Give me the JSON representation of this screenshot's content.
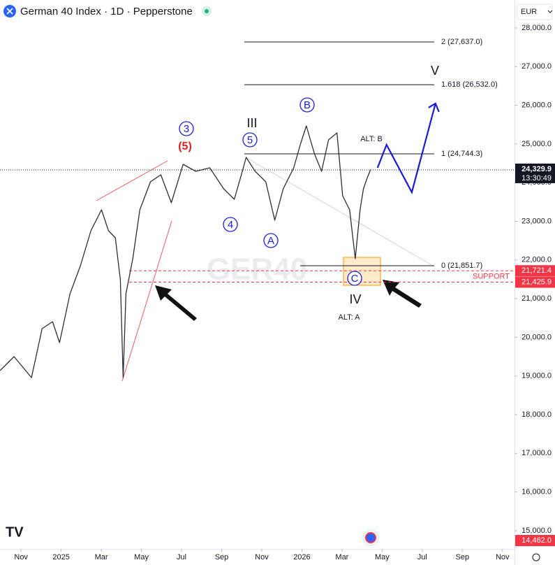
{
  "header": {
    "title": "German 40 Index · 1D · Pepperstone",
    "currency": "EUR"
  },
  "chart_data": {
    "type": "line",
    "watermark": "GER40",
    "x": [
      -1.05,
      -0.35,
      0.52,
      1.05,
      1.57,
      1.92,
      2.44,
      2.96,
      3.48,
      4.01,
      4.36,
      4.7,
      4.95,
      5.09,
      5.23,
      5.57,
      5.92,
      6.45,
      6.97,
      7.49,
      8.08,
      8.71,
      9.41,
      10.1,
      10.63,
      10.98,
      11.22,
      11.67,
      12.2,
      12.65,
      13.07,
      13.59,
      13.94,
      14.22,
      14.63,
      14.98,
      15.33,
      15.75,
      16.03,
      16.38,
      16.66,
      16.9,
      17.07,
      17.25,
      17.42
    ],
    "values": [
      19139,
      19501,
      18958,
      20224,
      20405,
      19863,
      21128,
      21852,
      22756,
      23298,
      22756,
      22575,
      21490,
      18958,
      21128,
      22033,
      23298,
      24022,
      24203,
      23479,
      24474,
      24293,
      24383,
      23841,
      23570,
      24203,
      24655,
      24293,
      24022,
      23027,
      23841,
      24383,
      25016,
      25468,
      24745,
      24293,
      25107,
      25288,
      23660,
      23298,
      22033,
      23298,
      23841,
      24112,
      24329.9
    ],
    "color": "#2a2e39",
    "projection": {
      "x": [
        17.77,
        18.22,
        19.48,
        20.66
      ],
      "values": [
        24383,
        24980,
        23750,
        26047
      ],
      "color": "#1a1ad6"
    },
    "xlim": [
      -1.05,
      24.6
    ],
    "xticks": [
      {
        "value": 0,
        "label": "Nov"
      },
      {
        "value": 2,
        "label": "2025"
      },
      {
        "value": 4,
        "label": "Mar"
      },
      {
        "value": 6,
        "label": "May"
      },
      {
        "value": 8,
        "label": "Jul"
      },
      {
        "value": 10,
        "label": "Sep"
      },
      {
        "value": 12,
        "label": "Nov"
      },
      {
        "value": 14,
        "label": "2026"
      },
      {
        "value": 16,
        "label": "Mar"
      },
      {
        "value": 18,
        "label": "May"
      },
      {
        "value": 20,
        "label": "Jul"
      },
      {
        "value": 22,
        "label": "Sep"
      },
      {
        "value": 24,
        "label": "Nov"
      }
    ],
    "ylim": [
      14528,
      28723
    ],
    "yticks": [
      {
        "value": 15000,
        "label": "15,000.0"
      },
      {
        "value": 16000,
        "label": "16,000.0"
      },
      {
        "value": 17000,
        "label": "17,000.0"
      },
      {
        "value": 18000,
        "label": "18,000.0"
      },
      {
        "value": 19000,
        "label": "19,000.0"
      },
      {
        "value": 20000,
        "label": "20,000.0"
      },
      {
        "value": 21000,
        "label": "21,000.0"
      },
      {
        "value": 22000,
        "label": "22,000.0"
      },
      {
        "value": 23000,
        "label": "23,000.0"
      },
      {
        "value": 24000,
        "label": "24,000.0"
      },
      {
        "value": 25000,
        "label": "25,000.0"
      },
      {
        "value": 26000,
        "label": "26,000.0"
      },
      {
        "value": 27000,
        "label": "27,000.0"
      },
      {
        "value": 28000,
        "label": "28,000.0"
      }
    ],
    "last_price": {
      "value": 24329.9,
      "label": "24,329.9",
      "countdown": "13:30:49"
    },
    "fib_levels": [
      {
        "value": 27637.0,
        "label": "2 (27,637.0)"
      },
      {
        "value": 26532.0,
        "label": "1.618 (26,532.0)"
      },
      {
        "value": 24744.3,
        "label": "1 (24,744.3)"
      },
      {
        "value": 21851.7,
        "label": "0 (21,851.7)"
      }
    ],
    "support_levels": [
      {
        "value": 21721.4,
        "label": "21,721.4"
      },
      {
        "value": 21425.9,
        "label": "21,425.9"
      }
    ],
    "support_text": "SUPPORT",
    "low_marker": {
      "value": 14462.0,
      "label": "14,462.0"
    },
    "wave_labels": [
      "3",
      "(5)",
      "III",
      "5",
      "4",
      "A",
      "B",
      "C",
      "IV",
      "V",
      "ALT: B",
      "ALT: A"
    ]
  }
}
